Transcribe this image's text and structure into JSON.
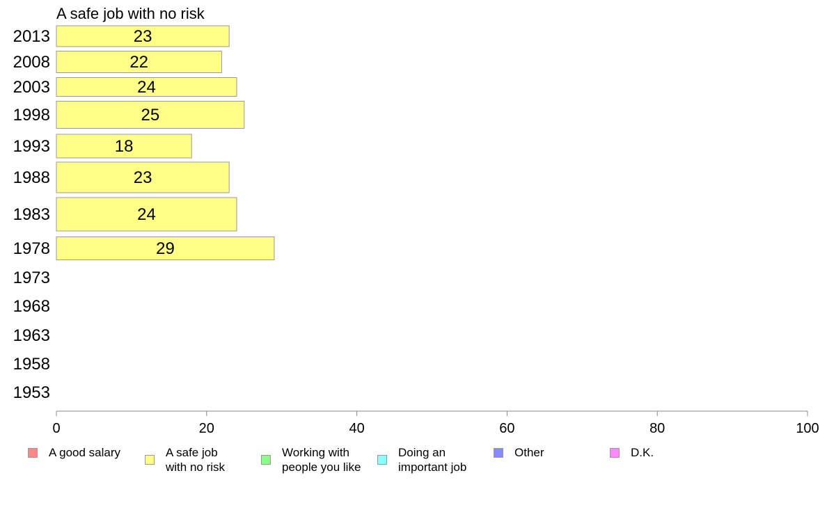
{
  "chart_data": {
    "type": "bar",
    "orientation": "horizontal",
    "title": "A safe job with no risk",
    "categories": [
      "2013",
      "2008",
      "2003",
      "1998",
      "1993",
      "1988",
      "1983",
      "1978",
      "1973",
      "1968",
      "1963",
      "1958",
      "1953"
    ],
    "series": [
      {
        "name": "A safe job with no risk",
        "color": "#ffff88",
        "values": [
          23,
          22,
          24,
          25,
          18,
          23,
          24,
          29,
          null,
          null,
          null,
          null,
          null
        ]
      }
    ],
    "xlim": [
      0,
      100
    ],
    "xticks": [
      "0",
      "20",
      "40",
      "60",
      "80",
      "100"
    ],
    "grid": false
  },
  "legend": [
    {
      "label": "A good salary",
      "color": "#ff8888"
    },
    {
      "label": "A safe job\nwith no risk",
      "color": "#ffff88"
    },
    {
      "label": "Working with\npeople you like",
      "color": "#88ff88"
    },
    {
      "label": "Doing an\nimportant job",
      "color": "#88ffff"
    },
    {
      "label": "Other",
      "color": "#8888ff"
    },
    {
      "label": "D.K.",
      "color": "#ff88ff"
    }
  ]
}
